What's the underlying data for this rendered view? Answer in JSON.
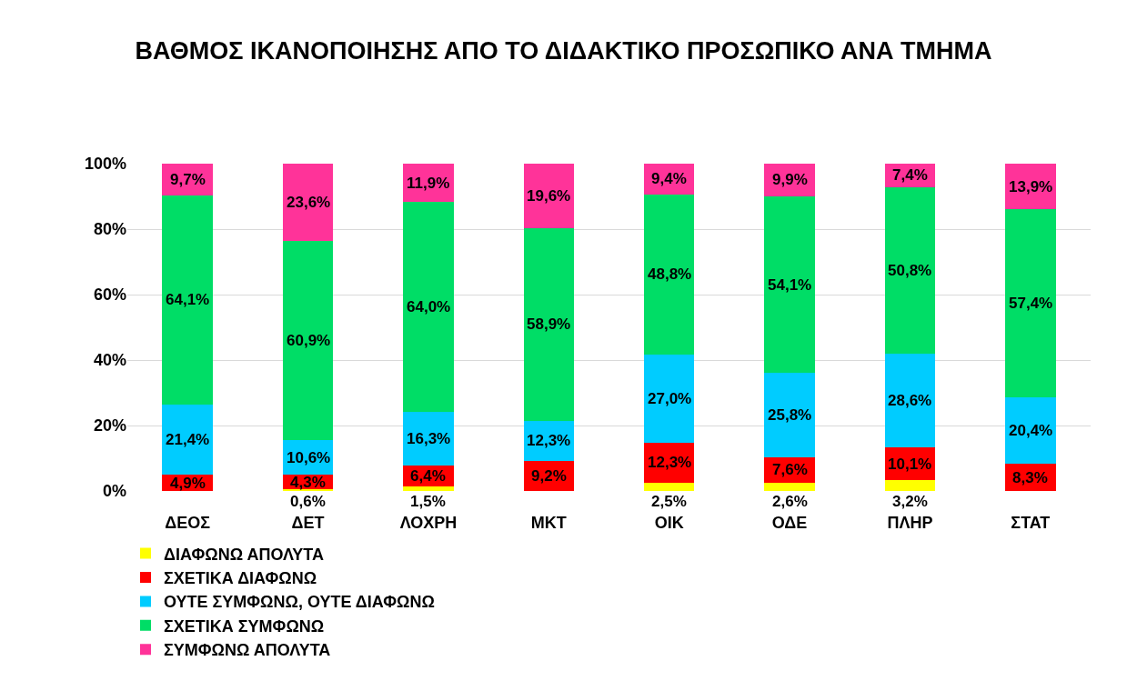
{
  "chart_data": {
    "type": "bar",
    "title": "ΒΑΘΜΟΣ ΙΚΑΝΟΠΟΙΗΣΗΣ ΑΠΟ ΤΟ ΔΙΔΑΚΤΙΚΟ ΠΡΟΣΩΠΙΚΟ ΑΝΑ ΤΜΗΜΑ",
    "categories": [
      "ΔΕΟΣ",
      "ΔΕΤ",
      "ΛΟΧΡΗ",
      "ΜΚΤ",
      "ΟΙΚ",
      "ΟΔΕ",
      "ΠΛΗΡ",
      "ΣΤΑΤ"
    ],
    "stacked": true,
    "series": [
      {
        "name": "ΔΙΑΦΩΝΩ ΑΠΟΛΥΤΑ",
        "color": "#ffff00",
        "values": [
          null,
          0.6,
          1.5,
          null,
          2.5,
          2.6,
          3.2,
          null
        ],
        "value_labels": [
          null,
          "0,6%",
          "1,5%",
          null,
          "2,5%",
          "2,6%",
          "3,2%",
          null
        ]
      },
      {
        "name": "ΣΧΕΤΙΚΑ ΔΙΑΦΩΝΩ",
        "color": "#ff0000",
        "values": [
          4.9,
          4.3,
          6.4,
          9.2,
          12.3,
          7.6,
          10.1,
          8.3
        ],
        "value_labels": [
          "4,9%",
          "4,3%",
          "6,4%",
          "9,2%",
          "12,3%",
          "7,6%",
          "10,1%",
          "8,3%"
        ]
      },
      {
        "name": "ΟΥΤΕ ΣΥΜΦΩΝΩ, ΟΥΤΕ ΔΙΑΦΩΝΩ",
        "color": "#00ccff",
        "values": [
          21.4,
          10.6,
          16.3,
          12.3,
          27.0,
          25.8,
          28.6,
          20.4
        ],
        "value_labels": [
          "21,4%",
          "10,6%",
          "16,3%",
          "12,3%",
          "27,0%",
          "25,8%",
          "28,6%",
          "20,4%"
        ]
      },
      {
        "name": "ΣΧΕΤΙΚΑ ΣΥΜΦΩΝΩ",
        "color": "#00dd66",
        "values": [
          64.1,
          60.9,
          64.0,
          58.9,
          48.8,
          54.1,
          50.8,
          57.4
        ],
        "value_labels": [
          "64,1%",
          "60,9%",
          "64,0%",
          "58,9%",
          "48,8%",
          "54,1%",
          "50,8%",
          "57,4%"
        ]
      },
      {
        "name": "ΣΥΜΦΩΝΩ ΑΠΟΛΥΤΑ",
        "color": "#ff3399",
        "values": [
          9.7,
          23.6,
          11.9,
          19.6,
          9.4,
          9.9,
          7.4,
          13.9
        ],
        "value_labels": [
          "9,7%",
          "23,6%",
          "11,9%",
          "19,6%",
          "9,4%",
          "9,9%",
          "7,4%",
          "13,9%"
        ]
      }
    ],
    "ylim": [
      0,
      100
    ],
    "yticks": [
      {
        "value": 0,
        "label": "0%"
      },
      {
        "value": 20,
        "label": "20%"
      },
      {
        "value": 40,
        "label": "40%"
      },
      {
        "value": 60,
        "label": "60%"
      },
      {
        "value": 80,
        "label": "80%"
      },
      {
        "value": 100,
        "label": "100%"
      }
    ],
    "grid": "y",
    "legend": "bottom"
  }
}
